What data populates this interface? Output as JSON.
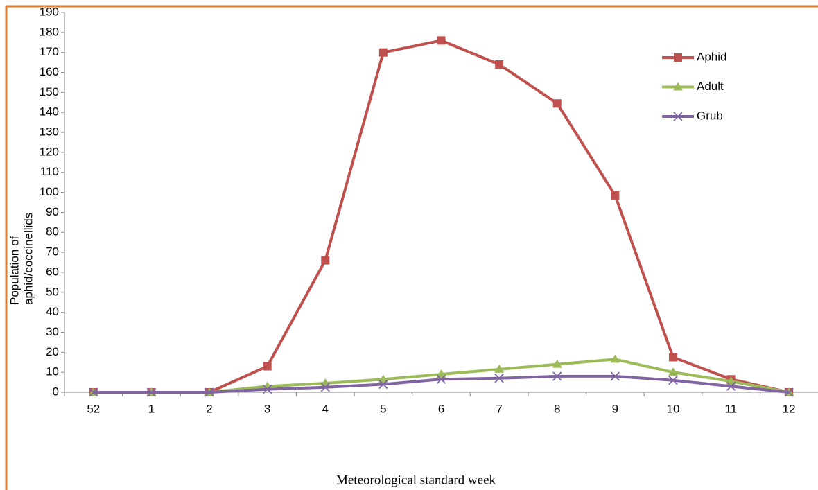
{
  "chart_data": {
    "type": "line",
    "ylabel": [
      "Population of",
      "aphid/coccinellids"
    ],
    "xlabel": "Meteorological standard week",
    "categories": [
      "52",
      "1",
      "2",
      "3",
      "4",
      "5",
      "6",
      "7",
      "8",
      "9",
      "10",
      "11",
      "12"
    ],
    "series": [
      {
        "name": "Aphid",
        "color": "#c0504d",
        "marker": "square",
        "values": [
          0,
          0,
          0,
          13,
          66,
          170,
          176,
          164,
          144.5,
          98.5,
          17.5,
          6.5,
          0
        ]
      },
      {
        "name": "Adult",
        "color": "#9bbb59",
        "marker": "triangle",
        "values": [
          0,
          0,
          0,
          3,
          4.5,
          6.5,
          9,
          11.5,
          14,
          16.5,
          10,
          5.5,
          0
        ]
      },
      {
        "name": "Grub",
        "color": "#8064a2",
        "marker": "x",
        "values": [
          0,
          0,
          0,
          1.5,
          2.5,
          4,
          6.5,
          7,
          8,
          8,
          6,
          3,
          0
        ]
      }
    ],
    "ylim": [
      0,
      190
    ],
    "yticks": [
      0,
      10,
      20,
      30,
      40,
      50,
      60,
      70,
      80,
      90,
      100,
      110,
      120,
      130,
      140,
      150,
      160,
      170,
      180,
      190
    ],
    "grid": false,
    "legend": "upper-right"
  }
}
